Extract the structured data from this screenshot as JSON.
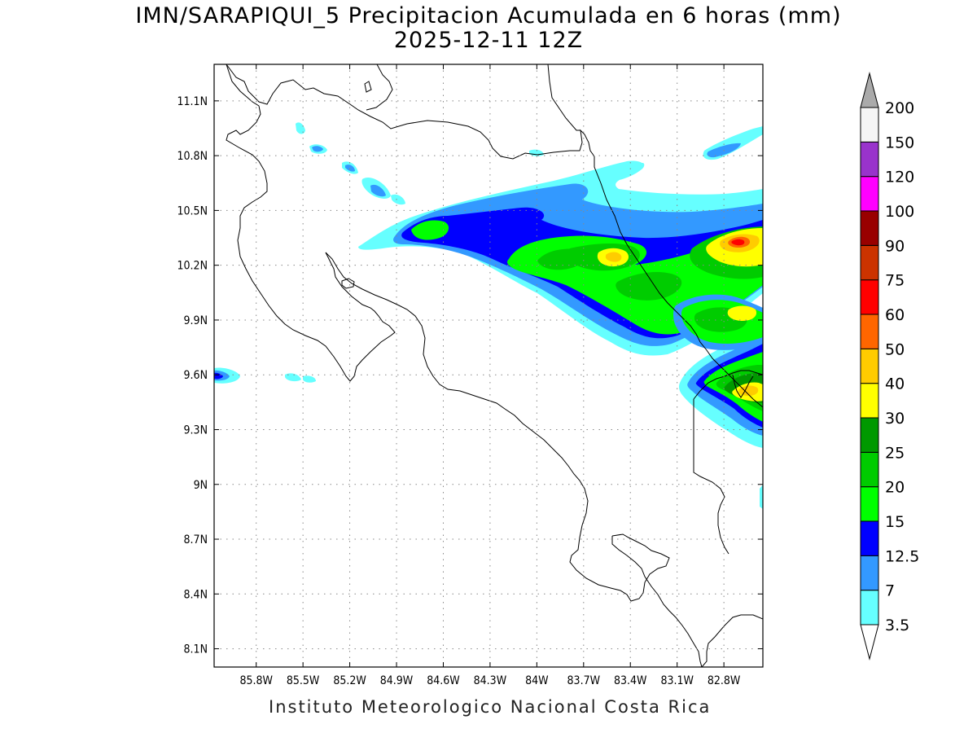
{
  "title": {
    "line1": "IMN/SARAPIQUI_5 Precipitacion Acumulada en 6 horas (mm)",
    "line2": "2025-12-11 12Z"
  },
  "footer": "Instituto Meteorologico Nacional Costa Rica",
  "map": {
    "lon_range": [
      -86.07,
      -82.55
    ],
    "lat_range": [
      8.0,
      11.3
    ],
    "x_ticks": [
      {
        "value": -85.8,
        "label": "85.8W"
      },
      {
        "value": -85.5,
        "label": "85.5W"
      },
      {
        "value": -85.2,
        "label": "85.2W"
      },
      {
        "value": -84.9,
        "label": "84.9W"
      },
      {
        "value": -84.6,
        "label": "84.6W"
      },
      {
        "value": -84.3,
        "label": "84.3W"
      },
      {
        "value": -84.0,
        "label": "84W"
      },
      {
        "value": -83.7,
        "label": "83.7W"
      },
      {
        "value": -83.4,
        "label": "83.4W"
      },
      {
        "value": -83.1,
        "label": "83.1W"
      },
      {
        "value": -82.8,
        "label": "82.8W"
      }
    ],
    "y_ticks": [
      {
        "value": 11.1,
        "label": "11.1N"
      },
      {
        "value": 10.8,
        "label": "10.8N"
      },
      {
        "value": 10.5,
        "label": "10.5N"
      },
      {
        "value": 10.2,
        "label": "10.2N"
      },
      {
        "value": 9.9,
        "label": "9.9N"
      },
      {
        "value": 9.6,
        "label": "9.6N"
      },
      {
        "value": 9.3,
        "label": "9.3N"
      },
      {
        "value": 9.0,
        "label": "9N"
      },
      {
        "value": 8.7,
        "label": "8.7N"
      },
      {
        "value": 8.4,
        "label": "8.4N"
      },
      {
        "value": 8.1,
        "label": "8.1N"
      }
    ],
    "grid": true,
    "grid_style": "dotted"
  },
  "colorbar": {
    "levels": [
      {
        "label": "3.5",
        "color": "#66ffff"
      },
      {
        "label": "7",
        "color": "#3399ff"
      },
      {
        "label": "12.5",
        "color": "#0000ff"
      },
      {
        "label": "15",
        "color": "#00ff00"
      },
      {
        "label": "20",
        "color": "#00cc00"
      },
      {
        "label": "25",
        "color": "#009900"
      },
      {
        "label": "30",
        "color": "#ffff00"
      },
      {
        "label": "40",
        "color": "#ffcc00"
      },
      {
        "label": "50",
        "color": "#ff6600"
      },
      {
        "label": "60",
        "color": "#ff0000"
      },
      {
        "label": "75",
        "color": "#cc3300"
      },
      {
        "label": "90",
        "color": "#990000"
      },
      {
        "label": "100",
        "color": "#ff00ff"
      },
      {
        "label": "120",
        "color": "#9933cc"
      },
      {
        "label": "150",
        "color": "#f5f5f5"
      },
      {
        "label": "200",
        "color": "#aaaaaa"
      }
    ]
  }
}
